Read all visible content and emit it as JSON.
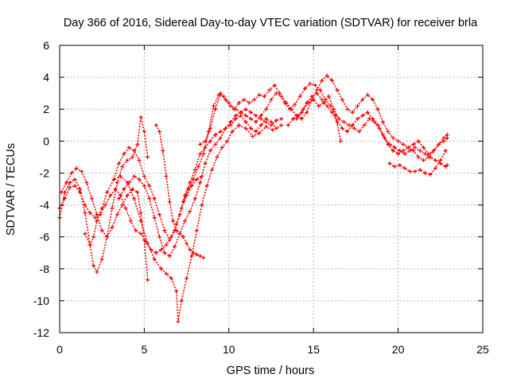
{
  "chart_data": {
    "type": "scatter",
    "title": "Day 366 of 2016, Sidereal Day-to-day VTEC variation (SDTVAR) for receiver brla",
    "xlabel": "GPS time / hours",
    "ylabel": "SDTVAR / TECUs",
    "xlim": [
      0,
      25
    ],
    "ylim": [
      -12,
      6
    ],
    "xticks": [
      0,
      5,
      10,
      15,
      20,
      25
    ],
    "yticks": [
      -12,
      -10,
      -8,
      -6,
      -4,
      -2,
      0,
      2,
      4,
      6
    ],
    "grid": true,
    "marker": "plus",
    "color": "#ff0000",
    "series": [
      {
        "x": [
          0.0,
          0.3,
          0.6,
          0.9,
          1.2,
          1.5,
          1.8,
          2.0,
          2.2,
          2.5,
          2.8,
          3.1,
          3.4,
          3.7,
          4.0,
          4.3,
          4.6,
          4.8,
          5.0,
          5.2
        ],
        "y": [
          -4.8,
          -3.2,
          -2.6,
          -2.4,
          -3.0,
          -4.5,
          -6.5,
          -7.8,
          -8.2,
          -7.4,
          -6.0,
          -4.2,
          -2.6,
          -1.6,
          -1.2,
          -1.0,
          -0.2,
          1.5,
          0.6,
          -1.0
        ]
      },
      {
        "x": [
          0.0,
          0.3,
          0.6,
          0.9,
          1.2,
          1.5,
          1.8,
          2.1,
          2.4,
          2.7,
          3.0,
          3.3,
          3.6,
          3.9,
          4.2,
          4.5,
          4.8,
          5.1,
          5.4,
          5.7,
          6.0,
          6.3,
          6.6,
          6.9,
          7.2,
          7.5,
          7.8,
          8.1,
          8.4
        ],
        "y": [
          -4.2,
          -3.6,
          -2.9,
          -2.8,
          -3.2,
          -4.0,
          -4.5,
          -4.8,
          -4.6,
          -4.0,
          -3.4,
          -3.0,
          -3.4,
          -4.2,
          -5.0,
          -5.6,
          -5.8,
          -6.3,
          -6.8,
          -7.0,
          -6.8,
          -6.5,
          -6.0,
          -5.2,
          -4.2,
          -3.4,
          -2.8,
          -2.4,
          -2.2
        ]
      },
      {
        "x": [
          1.5,
          1.8,
          2.0,
          2.2,
          2.5,
          2.8,
          3.2,
          3.6,
          4.0,
          4.4,
          4.8,
          5.2,
          5.6,
          6.0,
          6.3,
          6.6,
          6.9,
          7.0,
          7.2,
          7.5,
          7.8,
          8.1,
          8.4,
          8.7,
          9.0,
          9.3,
          9.6,
          9.9,
          10.2,
          10.6,
          11.0,
          11.4,
          11.8,
          12.2,
          12.6
        ],
        "y": [
          -5.8,
          -6.5,
          -6.0,
          -5.0,
          -4.2,
          -3.2,
          -2.4,
          -2.2,
          -2.6,
          -3.6,
          -5.0,
          -6.4,
          -7.4,
          -8.0,
          -8.3,
          -8.6,
          -9.4,
          -11.3,
          -10.0,
          -8.6,
          -7.2,
          -5.6,
          -4.0,
          -2.8,
          -1.8,
          -1.0,
          -0.4,
          0.0,
          0.6,
          1.0,
          0.8,
          0.3,
          0.5,
          0.9,
          0.7
        ]
      },
      {
        "x": [
          0.1,
          0.4,
          0.7,
          1.0,
          1.3,
          1.6,
          1.9,
          2.2,
          2.5,
          2.8,
          3.1,
          3.4,
          3.7,
          4.0,
          4.3,
          4.6,
          4.8,
          5.0,
          5.2
        ],
        "y": [
          -3.2,
          -2.6,
          -2.0,
          -1.7,
          -1.9,
          -2.6,
          -3.6,
          -4.6,
          -5.6,
          -6.0,
          -5.4,
          -4.6,
          -4.0,
          -3.4,
          -3.0,
          -3.2,
          -4.5,
          -6.2,
          -8.7
        ]
      },
      {
        "x": [
          5.7,
          5.9,
          6.1,
          6.3,
          6.5,
          6.7,
          6.9,
          7.1,
          7.3,
          7.5,
          7.7,
          7.9,
          8.1,
          8.3,
          8.5
        ],
        "y": [
          1.0,
          0.6,
          -0.6,
          -2.2,
          -3.8,
          -5.0,
          -5.6,
          -5.8,
          -6.0,
          -6.4,
          -6.8,
          -7.0,
          -7.1,
          -7.2,
          -7.3
        ]
      },
      {
        "x": [
          3.5,
          3.8,
          4.1,
          4.4,
          4.7,
          5.0,
          5.3,
          5.6,
          5.9,
          6.2,
          6.5,
          6.8,
          7.1,
          7.4,
          7.7,
          8.0,
          8.3,
          8.6,
          8.9,
          9.2,
          9.5,
          9.8,
          10.1,
          10.4,
          10.7,
          11.0,
          11.3,
          11.6,
          11.9,
          12.2,
          12.5,
          12.8,
          13.1
        ],
        "y": [
          -3.6,
          -3.0,
          -2.6,
          -2.2,
          -2.4,
          -2.8,
          -3.6,
          -4.8,
          -6.0,
          -7.0,
          -7.2,
          -6.6,
          -5.8,
          -5.0,
          -4.4,
          -3.6,
          -2.6,
          -1.4,
          -0.6,
          -0.2,
          0.2,
          0.8,
          1.2,
          1.6,
          1.8,
          2.0,
          1.8,
          1.6,
          1.4,
          1.2,
          1.0,
          1.3,
          1.4
        ]
      },
      {
        "x": [
          3.2,
          3.5,
          3.8,
          4.1,
          4.4,
          4.7,
          5.0,
          5.3,
          5.6,
          5.9,
          6.2,
          6.5,
          6.8,
          7.1,
          7.4,
          7.7,
          8.0,
          8.3,
          8.6,
          8.9,
          9.2,
          9.5,
          9.8,
          10.1,
          10.4,
          10.7,
          11.0,
          11.3,
          11.6,
          11.9,
          12.2,
          12.5,
          12.8,
          13.1
        ],
        "y": [
          -2.4,
          -1.4,
          -0.8,
          -0.4,
          -0.6,
          -1.2,
          -2.2,
          -2.8,
          -3.6,
          -4.6,
          -5.6,
          -6.2,
          -5.6,
          -4.6,
          -3.4,
          -2.6,
          -1.8,
          -0.8,
          -0.4,
          0.0,
          0.4,
          0.6,
          0.8,
          1.0,
          1.4,
          1.6,
          1.2,
          0.8,
          0.6,
          1.0,
          1.4,
          1.2,
          0.8,
          1.0
        ]
      },
      {
        "x": [
          7.3,
          7.6,
          7.9,
          8.2,
          8.5,
          8.8,
          9.1,
          9.4,
          9.7,
          10.0,
          10.3,
          10.6,
          10.9,
          11.2,
          11.5,
          11.8,
          12.1,
          12.4,
          12.7,
          13.0,
          13.3,
          13.6,
          13.9,
          14.2,
          14.5,
          14.8,
          15.1,
          15.4,
          15.7,
          16.0,
          16.3,
          16.6
        ],
        "y": [
          -3.8,
          -3.0,
          -2.4,
          -1.6,
          -0.8,
          0.6,
          2.2,
          2.9,
          2.8,
          2.4,
          2.0,
          2.4,
          2.6,
          2.4,
          2.6,
          2.9,
          2.8,
          3.2,
          3.5,
          3.0,
          2.4,
          2.0,
          2.3,
          2.8,
          3.3,
          3.6,
          3.5,
          3.2,
          2.6,
          2.2,
          1.6,
          0.0
        ]
      },
      {
        "x": [
          8.3,
          8.6,
          8.9,
          9.2,
          9.5,
          9.8,
          10.1,
          10.4,
          10.7,
          11.0,
          11.3,
          11.6,
          11.9,
          12.2,
          12.5,
          12.8,
          13.1,
          13.4,
          13.7,
          14.0,
          14.3,
          14.6,
          14.9,
          15.2,
          15.5,
          15.8,
          16.1,
          16.4,
          16.7,
          17.0,
          17.3,
          17.6,
          17.9,
          18.2,
          18.5,
          18.8,
          19.1,
          19.4,
          19.7,
          20.0,
          20.3,
          20.6,
          20.9,
          21.2,
          21.5,
          21.8,
          22.1,
          22.4,
          22.7,
          22.9
        ],
        "y": [
          -0.2,
          0.0,
          0.8,
          2.0,
          3.0,
          2.6,
          2.2,
          2.0,
          1.8,
          1.6,
          1.4,
          1.2,
          1.6,
          2.0,
          2.6,
          3.0,
          2.8,
          2.4,
          2.0,
          1.6,
          1.4,
          1.8,
          2.6,
          3.2,
          3.8,
          4.1,
          3.8,
          3.2,
          2.6,
          2.0,
          1.8,
          2.2,
          2.6,
          2.9,
          2.6,
          2.0,
          1.2,
          0.6,
          0.2,
          0.0,
          -0.2,
          -0.4,
          -0.2,
          0.0,
          -0.4,
          -0.8,
          -0.6,
          -0.2,
          0.2,
          0.4
        ]
      },
      {
        "x": [
          14.0,
          14.3,
          14.6,
          14.9,
          15.2,
          15.5,
          15.8,
          16.1,
          16.4,
          16.7,
          17.0,
          17.3,
          17.6,
          17.9,
          18.2,
          18.5,
          18.8,
          19.1,
          19.4,
          19.7,
          20.0,
          20.3,
          20.6,
          20.9,
          21.2,
          21.5,
          21.8,
          22.1,
          22.4,
          22.7,
          22.9
        ],
        "y": [
          1.4,
          1.8,
          2.4,
          2.8,
          3.0,
          2.6,
          2.2,
          1.8,
          1.2,
          0.8,
          0.6,
          1.0,
          1.4,
          1.6,
          1.8,
          1.4,
          1.0,
          0.4,
          -0.2,
          -0.6,
          -0.8,
          -0.6,
          -0.4,
          -0.6,
          -1.0,
          -1.2,
          -1.0,
          -0.6,
          -0.2,
          0.0,
          0.2
        ]
      },
      {
        "x": [
          13.5,
          13.8,
          14.1,
          14.4,
          14.7,
          15.0,
          15.3,
          15.6,
          15.9,
          16.2,
          16.5,
          16.8,
          17.1,
          17.4,
          17.7,
          18.0,
          18.3,
          18.6,
          18.9,
          19.2,
          19.5,
          19.8,
          20.1,
          20.4,
          20.7,
          21.0,
          21.3,
          21.6,
          21.9,
          22.2,
          22.5,
          22.8,
          22.9
        ],
        "y": [
          1.0,
          1.4,
          1.6,
          2.0,
          2.4,
          2.6,
          2.2,
          2.4,
          2.8,
          2.0,
          1.4,
          1.2,
          1.0,
          0.8,
          0.6,
          1.0,
          1.4,
          1.2,
          0.8,
          0.2,
          -0.2,
          -0.4,
          -0.6,
          -0.8,
          -0.6,
          -0.4,
          -0.6,
          -0.8,
          -1.0,
          -1.2,
          -1.4,
          -1.6,
          -1.5
        ]
      },
      {
        "x": [
          19.5,
          19.8,
          20.1,
          20.4,
          20.7,
          21.0,
          21.3,
          21.6,
          21.9,
          22.2,
          22.5,
          22.8
        ],
        "y": [
          -1.4,
          -1.6,
          -1.5,
          -1.7,
          -1.9,
          -1.9,
          -1.8,
          -2.0,
          -2.1,
          -1.7,
          -1.2,
          -0.6
        ]
      }
    ]
  }
}
